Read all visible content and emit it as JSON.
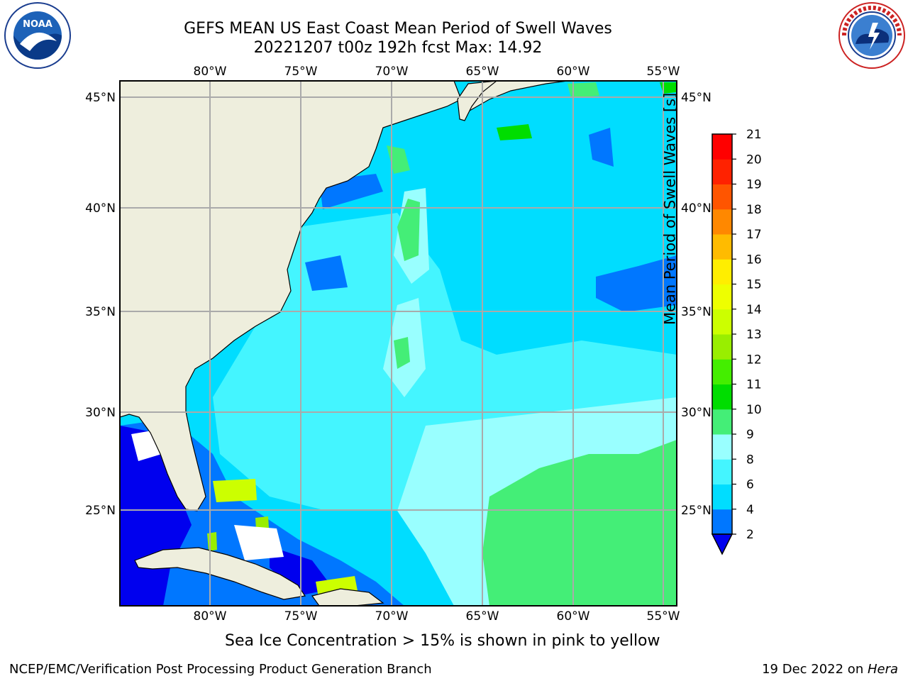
{
  "title": {
    "line1": "GEFS MEAN US East Coast Mean Period of Swell Waves",
    "line2": "20221207 t00z 192h fcst   Max: 14.92"
  },
  "logos": {
    "left": {
      "icon": "noaa-logo",
      "text": "NOAA"
    },
    "right": {
      "icon": "nws-logo",
      "text": "NATIONAL WEATHER SERVICE"
    }
  },
  "map": {
    "longitude_labels": [
      "80°W",
      "75°W",
      "70°W",
      "65°W",
      "60°W",
      "55°W"
    ],
    "latitude_labels": [
      "45°N",
      "40°N",
      "35°N",
      "30°N",
      "25°N"
    ],
    "land_color": "#EEEEDD",
    "grid_color": "#AAAAAA"
  },
  "colorbar": {
    "label": "Mean Period of Swell Waves [s]",
    "ticks": [
      "2",
      "4",
      "6",
      "8",
      "9",
      "10",
      "11",
      "12",
      "13",
      "14",
      "15",
      "16",
      "17",
      "18",
      "19",
      "20",
      "21"
    ],
    "colors": [
      "#0000EE",
      "#0077FF",
      "#00DDFF",
      "#44F5FF",
      "#99FFFF",
      "#44EE77",
      "#00DD00",
      "#44EE00",
      "#99EE00",
      "#CCFF00",
      "#EEFF00",
      "#FFEE00",
      "#FFBB00",
      "#FF8800",
      "#FF5500",
      "#FF2200",
      "#FF0000"
    ],
    "underflow_color": "#0000EE"
  },
  "caption": "Sea Ice Concentration > 15% is shown in pink to yellow",
  "footer": {
    "left": "NCEP/EMC/Verification Post Processing Product Generation Branch",
    "date": "19 Dec 2022 on ",
    "host": "Hera"
  }
}
